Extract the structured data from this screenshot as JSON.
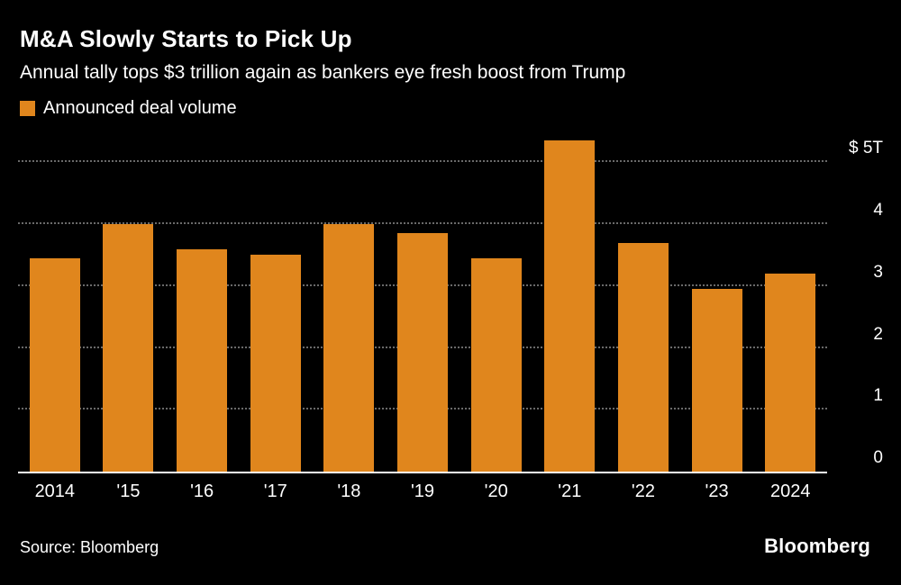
{
  "header": {
    "title": "M&A Slowly Starts to Pick Up",
    "subtitle": "Annual tally tops $3 trillion again as bankers eye fresh boost from Trump",
    "legend": {
      "label": "Announced deal volume",
      "swatch_color": "#E0861D"
    }
  },
  "chart_data": {
    "type": "bar",
    "title": "M&A Slowly Starts to Pick Up",
    "subtitle": "Annual tally tops $3 trillion again as bankers eye fresh boost from Trump",
    "series_name": "Announced deal volume",
    "unit": "trillions USD",
    "categories": [
      "2014",
      "'15",
      "'16",
      "'17",
      "'18",
      "'19",
      "'20",
      "'21",
      "'22",
      "'23",
      "2024"
    ],
    "values": [
      3.45,
      4.0,
      3.6,
      3.5,
      4.0,
      3.85,
      3.45,
      5.35,
      3.7,
      2.95,
      3.2
    ],
    "bar_color": "#E0861D",
    "ylim": [
      0,
      5.5
    ],
    "y_ticks": [
      {
        "value": 5,
        "label": "$ 5T"
      },
      {
        "value": 4,
        "label": "4"
      },
      {
        "value": 3,
        "label": "3"
      },
      {
        "value": 2,
        "label": "2"
      },
      {
        "value": 1,
        "label": "1"
      },
      {
        "value": 0,
        "label": "0"
      }
    ],
    "grid": "dotted horizontal, behind bars",
    "legend_position": "top-left",
    "axis_labels_position": "right"
  },
  "footer": {
    "source": "Source: Bloomberg",
    "brand": "Bloomberg"
  }
}
